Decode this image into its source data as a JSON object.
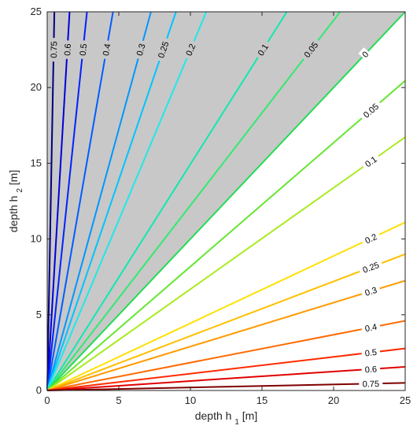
{
  "chart_data": {
    "type": "line",
    "subtype": "contour",
    "title": "",
    "xlabel": "depth h",
    "xlabel_sub": "1",
    "xlabel_unit": " [m]",
    "ylabel": "depth h",
    "ylabel_sub": "2",
    "ylabel_unit": " [m]",
    "xlim": [
      0,
      25
    ],
    "ylim": [
      0,
      25
    ],
    "xticks": [
      "0",
      "5",
      "10",
      "15",
      "20",
      "25"
    ],
    "yticks": [
      "0",
      "5",
      "10",
      "15",
      "20",
      "25"
    ],
    "grid": false,
    "shaded_region": {
      "description": "h2 > h1 (above zero contour)",
      "color": "#c8c8c8"
    },
    "contours": [
      {
        "level": "0.75",
        "side": "upper",
        "slope": 50.0,
        "color": "#00007f"
      },
      {
        "level": "0.6",
        "side": "upper",
        "slope": 16.0,
        "color": "#0000d9"
      },
      {
        "level": "0.5",
        "side": "upper",
        "slope": 9.0,
        "color": "#0022ff"
      },
      {
        "level": "0.4",
        "side": "upper",
        "slope": 5.44,
        "color": "#005cff"
      },
      {
        "level": "0.3",
        "side": "upper",
        "slope": 3.45,
        "color": "#0096ff"
      },
      {
        "level": "0.25",
        "side": "upper",
        "slope": 2.78,
        "color": "#00c4ff"
      },
      {
        "level": "0.2",
        "side": "upper",
        "slope": 2.25,
        "color": "#20e8e8"
      },
      {
        "level": "0.1",
        "side": "upper",
        "slope": 1.494,
        "color": "#10e8b0"
      },
      {
        "level": "0.05",
        "side": "upper",
        "slope": 1.222,
        "color": "#30ea70"
      },
      {
        "level": "0",
        "side": "diag",
        "slope": 1.0,
        "color": "#22dd55"
      },
      {
        "level": "0.05",
        "side": "lower",
        "slope": 0.818,
        "color": "#66e630"
      },
      {
        "level": "0.1",
        "side": "lower",
        "slope": 0.669,
        "color": "#aaea22"
      },
      {
        "level": "0.2",
        "side": "lower",
        "slope": 0.444,
        "color": "#ffe000"
      },
      {
        "level": "0.25",
        "side": "lower",
        "slope": 0.36,
        "color": "#ffbf00"
      },
      {
        "level": "0.3",
        "side": "lower",
        "slope": 0.29,
        "color": "#ff9a00"
      },
      {
        "level": "0.4",
        "side": "lower",
        "slope": 0.184,
        "color": "#ff6a00"
      },
      {
        "level": "0.5",
        "side": "lower",
        "slope": 0.111,
        "color": "#ff2a00"
      },
      {
        "level": "0.6",
        "side": "lower",
        "slope": 0.0625,
        "color": "#e00000"
      },
      {
        "level": "0.75",
        "side": "lower",
        "slope": 0.02,
        "color": "#800000"
      }
    ]
  }
}
